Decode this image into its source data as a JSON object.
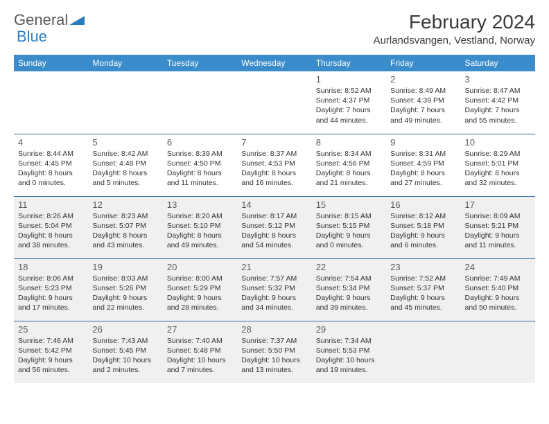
{
  "logo": {
    "part1": "General",
    "part2": "Blue"
  },
  "title": "February 2024",
  "location": "Aurlandsvangen, Vestland, Norway",
  "colors": {
    "header_bg": "#3b8ccb",
    "header_fg": "#ffffff",
    "row_border": "#2a6aa0",
    "shaded_bg": "#f0f0f0",
    "logo_gray": "#5a5a5a",
    "logo_blue": "#2a7ebf"
  },
  "weekdays": [
    "Sunday",
    "Monday",
    "Tuesday",
    "Wednesday",
    "Thursday",
    "Friday",
    "Saturday"
  ],
  "weeks": [
    [
      null,
      null,
      null,
      null,
      {
        "d": "1",
        "sr": "8:52 AM",
        "ss": "4:37 PM",
        "dl": "7 hours and 44 minutes."
      },
      {
        "d": "2",
        "sr": "8:49 AM",
        "ss": "4:39 PM",
        "dl": "7 hours and 49 minutes."
      },
      {
        "d": "3",
        "sr": "8:47 AM",
        "ss": "4:42 PM",
        "dl": "7 hours and 55 minutes."
      }
    ],
    [
      {
        "d": "4",
        "sr": "8:44 AM",
        "ss": "4:45 PM",
        "dl": "8 hours and 0 minutes."
      },
      {
        "d": "5",
        "sr": "8:42 AM",
        "ss": "4:48 PM",
        "dl": "8 hours and 5 minutes."
      },
      {
        "d": "6",
        "sr": "8:39 AM",
        "ss": "4:50 PM",
        "dl": "8 hours and 11 minutes."
      },
      {
        "d": "7",
        "sr": "8:37 AM",
        "ss": "4:53 PM",
        "dl": "8 hours and 16 minutes."
      },
      {
        "d": "8",
        "sr": "8:34 AM",
        "ss": "4:56 PM",
        "dl": "8 hours and 21 minutes."
      },
      {
        "d": "9",
        "sr": "8:31 AM",
        "ss": "4:59 PM",
        "dl": "8 hours and 27 minutes."
      },
      {
        "d": "10",
        "sr": "8:29 AM",
        "ss": "5:01 PM",
        "dl": "8 hours and 32 minutes."
      }
    ],
    [
      {
        "d": "11",
        "sr": "8:26 AM",
        "ss": "5:04 PM",
        "dl": "8 hours and 38 minutes."
      },
      {
        "d": "12",
        "sr": "8:23 AM",
        "ss": "5:07 PM",
        "dl": "8 hours and 43 minutes."
      },
      {
        "d": "13",
        "sr": "8:20 AM",
        "ss": "5:10 PM",
        "dl": "8 hours and 49 minutes."
      },
      {
        "d": "14",
        "sr": "8:17 AM",
        "ss": "5:12 PM",
        "dl": "8 hours and 54 minutes."
      },
      {
        "d": "15",
        "sr": "8:15 AM",
        "ss": "5:15 PM",
        "dl": "9 hours and 0 minutes."
      },
      {
        "d": "16",
        "sr": "8:12 AM",
        "ss": "5:18 PM",
        "dl": "9 hours and 6 minutes."
      },
      {
        "d": "17",
        "sr": "8:09 AM",
        "ss": "5:21 PM",
        "dl": "9 hours and 11 minutes."
      }
    ],
    [
      {
        "d": "18",
        "sr": "8:06 AM",
        "ss": "5:23 PM",
        "dl": "9 hours and 17 minutes."
      },
      {
        "d": "19",
        "sr": "8:03 AM",
        "ss": "5:26 PM",
        "dl": "9 hours and 22 minutes."
      },
      {
        "d": "20",
        "sr": "8:00 AM",
        "ss": "5:29 PM",
        "dl": "9 hours and 28 minutes."
      },
      {
        "d": "21",
        "sr": "7:57 AM",
        "ss": "5:32 PM",
        "dl": "9 hours and 34 minutes."
      },
      {
        "d": "22",
        "sr": "7:54 AM",
        "ss": "5:34 PM",
        "dl": "9 hours and 39 minutes."
      },
      {
        "d": "23",
        "sr": "7:52 AM",
        "ss": "5:37 PM",
        "dl": "9 hours and 45 minutes."
      },
      {
        "d": "24",
        "sr": "7:49 AM",
        "ss": "5:40 PM",
        "dl": "9 hours and 50 minutes."
      }
    ],
    [
      {
        "d": "25",
        "sr": "7:46 AM",
        "ss": "5:42 PM",
        "dl": "9 hours and 56 minutes."
      },
      {
        "d": "26",
        "sr": "7:43 AM",
        "ss": "5:45 PM",
        "dl": "10 hours and 2 minutes."
      },
      {
        "d": "27",
        "sr": "7:40 AM",
        "ss": "5:48 PM",
        "dl": "10 hours and 7 minutes."
      },
      {
        "d": "28",
        "sr": "7:37 AM",
        "ss": "5:50 PM",
        "dl": "10 hours and 13 minutes."
      },
      {
        "d": "29",
        "sr": "7:34 AM",
        "ss": "5:53 PM",
        "dl": "10 hours and 19 minutes."
      },
      null,
      null
    ]
  ],
  "shaded_rows": [
    2,
    3,
    4
  ],
  "labels": {
    "sunrise": "Sunrise:",
    "sunset": "Sunset:",
    "daylight": "Daylight:"
  }
}
